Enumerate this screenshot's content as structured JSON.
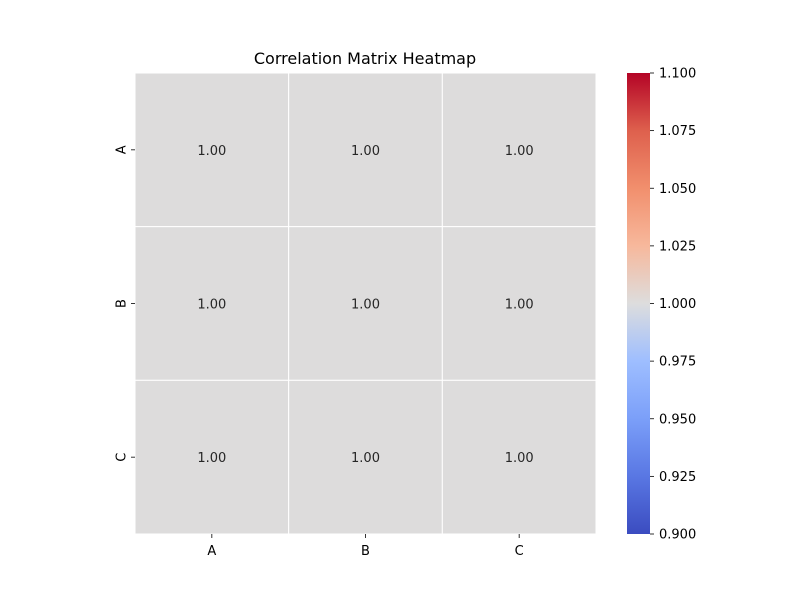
{
  "chart_data": {
    "type": "heatmap",
    "title": "Correlation Matrix Heatmap",
    "x_labels": [
      "A",
      "B",
      "C"
    ],
    "y_labels": [
      "A",
      "B",
      "C"
    ],
    "values": [
      [
        1.0,
        1.0,
        1.0
      ],
      [
        1.0,
        1.0,
        1.0
      ],
      [
        1.0,
        1.0,
        1.0
      ]
    ],
    "annotations": [
      [
        "1.00",
        "1.00",
        "1.00"
      ],
      [
        "1.00",
        "1.00",
        "1.00"
      ],
      [
        "1.00",
        "1.00",
        "1.00"
      ]
    ],
    "colormap": "coolwarm",
    "colorbar": {
      "range": [
        0.9,
        1.1
      ],
      "ticks": [
        "0.900",
        "0.925",
        "0.950",
        "0.975",
        "1.000",
        "1.025",
        "1.050",
        "1.075",
        "1.100"
      ]
    },
    "colors": {
      "cell_fill": "#dddcdc",
      "cell_border": "#ffffff",
      "cmap_low": "#3b4cc0",
      "cmap_mid": "#dddddd",
      "cmap_high": "#b40426"
    }
  }
}
